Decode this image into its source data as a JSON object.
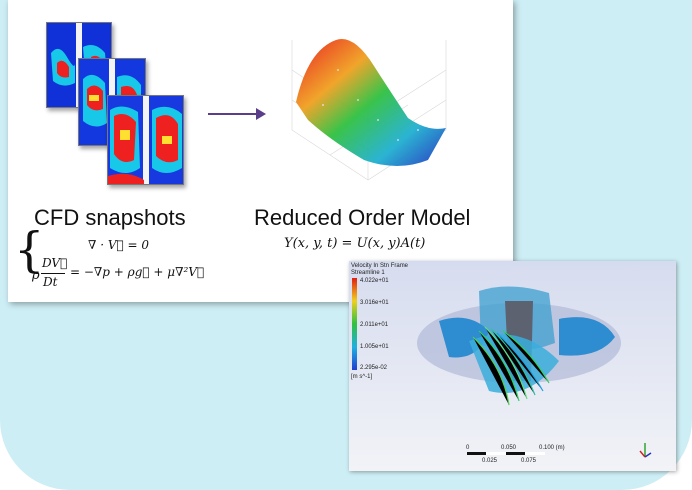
{
  "labels": {
    "cfd": "CFD snapshots",
    "rom": "Reduced Order Model"
  },
  "equations": {
    "rom": "Y(x, y, t) = U(x, y)A(t)",
    "continuity": "∇ · V⃗ = 0",
    "momentum_lhs_num": "DV⃗",
    "momentum_lhs_den": "Dt",
    "momentum_rhs": "= −∇p + ρg⃗ + μ∇²V⃗",
    "rho": "ρ"
  },
  "simulation": {
    "legend_title": "Velocity In Stn Frame",
    "legend_subtitle": "Streamline 1",
    "legend_ticks": [
      "4.022e+01",
      "3.016e+01",
      "2.011e+01",
      "1.005e+01",
      "2.295e-02"
    ],
    "legend_unit": "[m s^-1]",
    "scale_labels": [
      "0",
      "0.050",
      "0.100 (m)",
      "0.025",
      "0.075"
    ]
  }
}
